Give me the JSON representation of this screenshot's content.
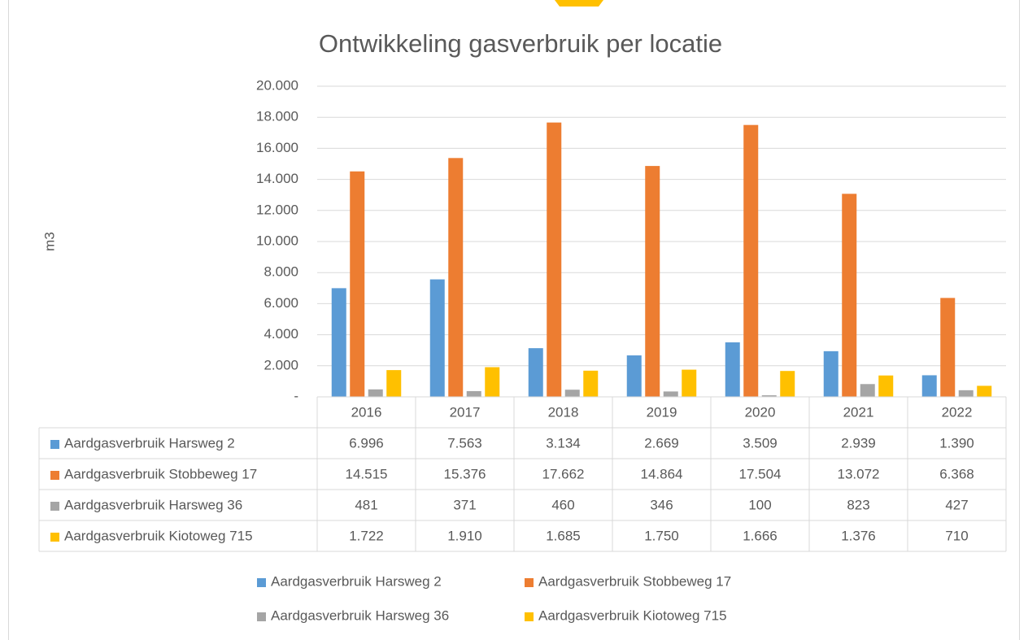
{
  "chart_data": {
    "type": "bar",
    "title": "Ontwikkeling gasverbruik per locatie",
    "y_label": "m3",
    "categories": [
      "2016",
      "2017",
      "2018",
      "2019",
      "2020",
      "2021",
      "2022"
    ],
    "series": [
      {
        "name": "Aardgasverbruik Harsweg 2",
        "color": "#5b9bd5",
        "values": [
          6996,
          7563,
          3134,
          2669,
          3509,
          2939,
          1390
        ],
        "value_labels": [
          "6.996",
          "7.563",
          "3.134",
          "2.669",
          "3.509",
          "2.939",
          "1.390"
        ]
      },
      {
        "name": "Aardgasverbruik Stobbeweg 17",
        "color": "#ed7d31",
        "values": [
          14515,
          15376,
          17662,
          14864,
          17504,
          13072,
          6368
        ],
        "value_labels": [
          "14.515",
          "15.376",
          "17.662",
          "14.864",
          "17.504",
          "13.072",
          "6.368"
        ]
      },
      {
        "name": "Aardgasverbruik Harsweg 36",
        "color": "#a5a5a5",
        "values": [
          481,
          371,
          460,
          346,
          100,
          823,
          427
        ]
      },
      {
        "name": "Aardgasverbruik Kiotoweg 715",
        "color": "#ffc000",
        "values": [
          1722,
          1910,
          1685,
          1750,
          1666,
          1376,
          710
        ],
        "value_labels": [
          "1.722",
          "1.910",
          "1.685",
          "1.750",
          "1.666",
          "1.376",
          "710"
        ]
      }
    ],
    "ylim": [
      0,
      20000
    ],
    "yticks": [
      {
        "value": 0,
        "label": "-"
      },
      {
        "value": 2000,
        "label": "2.000"
      },
      {
        "value": 4000,
        "label": "4.000"
      },
      {
        "value": 6000,
        "label": "6.000"
      },
      {
        "value": 8000,
        "label": "8.000"
      },
      {
        "value": 10000,
        "label": "10.000"
      },
      {
        "value": 12000,
        "label": "12.000"
      },
      {
        "value": 14000,
        "label": "14.000"
      },
      {
        "value": 16000,
        "label": "16.000"
      },
      {
        "value": 18000,
        "label": "18.000"
      },
      {
        "value": 20000,
        "label": "20.000"
      }
    ],
    "grid": true,
    "data_table": true,
    "legend": "bottom"
  }
}
